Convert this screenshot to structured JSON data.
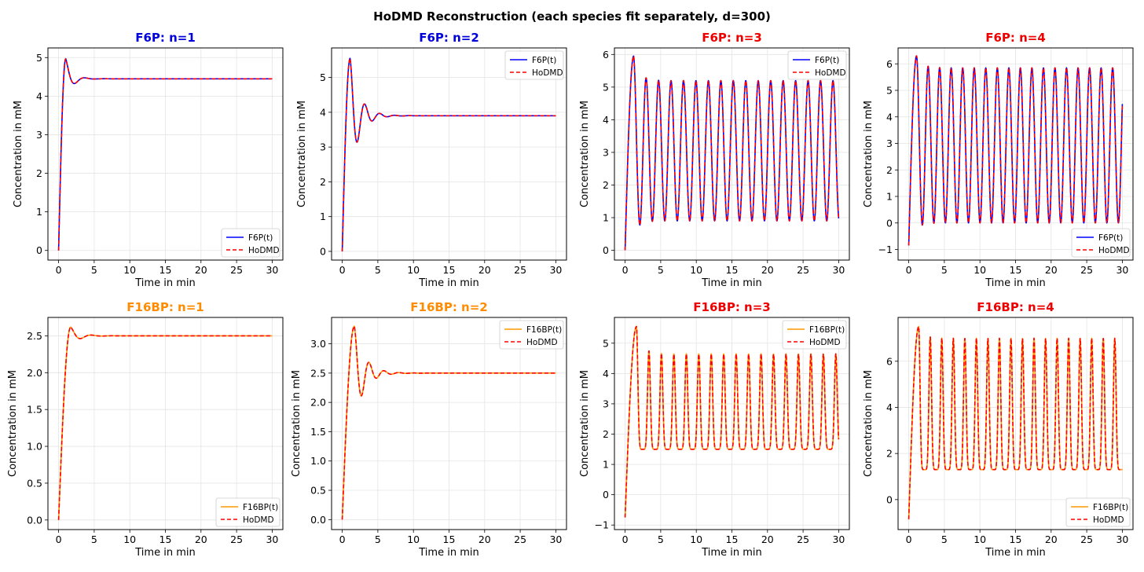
{
  "figure_title": "HoDMD Reconstruction (each species fit separately, d=300)",
  "colors": {
    "f6p_line": "#0000ff",
    "f16bp_line": "#ff9900",
    "hodmd_line": "#ff0000",
    "title_stable_f6p": "#0000dd",
    "title_stable_f16bp": "#ff8c00",
    "title_oscillating": "#ee0000",
    "grid": "#e4e4e4"
  },
  "chart_data": [
    {
      "id": "f6p-n1",
      "type": "line",
      "title": "F6P: n=1",
      "title_color": "#0000dd",
      "xlabel": "Time in min",
      "ylabel": "Concentration in mM",
      "xlim": [
        -1.5,
        31.5
      ],
      "ylim": [
        -0.25,
        5.25
      ],
      "xticks": [
        "0",
        "5",
        "10",
        "15",
        "20",
        "25",
        "30"
      ],
      "yticks": [
        "0",
        "1",
        "2",
        "3",
        "4",
        "5"
      ],
      "legend_loc": "lower-right",
      "series": [
        {
          "name": "F6P(t)",
          "color": "#0000ff",
          "style": "solid"
        },
        {
          "name": "HoDMD",
          "color": "#ff0000",
          "style": "dashed"
        }
      ],
      "dynamics": {
        "kind": "damped",
        "rise_end": 1.0,
        "peak": 4.97,
        "steady": 4.45,
        "period": 2.8,
        "decay": 0.9,
        "start": 0,
        "osc_amp_factor": 1.0
      }
    },
    {
      "id": "f6p-n2",
      "type": "line",
      "title": "F6P: n=2",
      "title_color": "#0000dd",
      "xlabel": "Time in min",
      "ylabel": "Concentration in mM",
      "xlim": [
        -1.5,
        31.5
      ],
      "ylim": [
        -0.25,
        5.85
      ],
      "xticks": [
        "0",
        "5",
        "10",
        "15",
        "20",
        "25",
        "30"
      ],
      "yticks": [
        "0",
        "1",
        "2",
        "3",
        "4",
        "5"
      ],
      "legend_loc": "upper-right",
      "series": [
        {
          "name": "F6P(t)",
          "color": "#0000ff",
          "style": "solid"
        },
        {
          "name": "HoDMD",
          "color": "#ff0000",
          "style": "dashed"
        }
      ],
      "dynamics": {
        "kind": "damped",
        "rise_end": 1.1,
        "peak": 5.55,
        "steady": 3.9,
        "period": 2.1,
        "decay": 1.3,
        "start": 0,
        "osc_amp_factor": 1.0
      }
    },
    {
      "id": "f6p-n3",
      "type": "line",
      "title": "F6P: n=3",
      "title_color": "#ee0000",
      "xlabel": "Time in min",
      "ylabel": "Concentration in mM",
      "xlim": [
        -1.5,
        31.5
      ],
      "ylim": [
        -0.3,
        6.2
      ],
      "xticks": [
        "0",
        "5",
        "10",
        "15",
        "20",
        "25",
        "30"
      ],
      "yticks": [
        "0",
        "1",
        "2",
        "3",
        "4",
        "5",
        "6"
      ],
      "legend_loc": "upper-right",
      "series": [
        {
          "name": "F6P(t)",
          "color": "#0000ff",
          "style": "solid"
        },
        {
          "name": "HoDMD",
          "color": "#ff0000",
          "style": "dashed"
        }
      ],
      "dynamics": {
        "kind": "osc",
        "rise_end": 1.2,
        "first_peak": 5.95,
        "peak": 5.2,
        "trough": 0.9,
        "period": 1.75,
        "start": 0
      }
    },
    {
      "id": "f6p-n4",
      "type": "line",
      "title": "F6P: n=4",
      "title_color": "#ee0000",
      "xlabel": "Time in min",
      "ylabel": "Concentration in mM",
      "xlim": [
        -1.5,
        31.5
      ],
      "ylim": [
        -1.4,
        6.6
      ],
      "xticks": [
        "0",
        "5",
        "10",
        "15",
        "20",
        "25",
        "30"
      ],
      "yticks": [
        "−1",
        "0",
        "1",
        "2",
        "3",
        "4",
        "5",
        "6"
      ],
      "legend_loc": "lower-right",
      "series": [
        {
          "name": "F6P(t)",
          "color": "#0000ff",
          "style": "solid"
        },
        {
          "name": "HoDMD",
          "color": "#ff0000",
          "style": "dashed"
        }
      ],
      "dynamics": {
        "kind": "osc",
        "rise_end": 1.1,
        "first_peak": 6.3,
        "peak": 5.85,
        "trough": 0.0,
        "period": 1.62,
        "start": -0.85
      }
    },
    {
      "id": "f16bp-n1",
      "type": "line",
      "title": "F16BP: n=1",
      "title_color": "#ff8c00",
      "xlabel": "Time in min",
      "ylabel": "Concentration in mM",
      "xlim": [
        -1.5,
        31.5
      ],
      "ylim": [
        -0.13,
        2.75
      ],
      "xticks": [
        "0",
        "5",
        "10",
        "15",
        "20",
        "25",
        "30"
      ],
      "yticks": [
        "0.0",
        "0.5",
        "1.0",
        "1.5",
        "2.0",
        "2.5"
      ],
      "legend_loc": "lower-right",
      "series": [
        {
          "name": "F16BP(t)",
          "color": "#ff9900",
          "style": "solid"
        },
        {
          "name": "HoDMD",
          "color": "#ff0000",
          "style": "dashed"
        }
      ],
      "dynamics": {
        "kind": "damped",
        "rise_end": 1.7,
        "peak": 2.62,
        "steady": 2.5,
        "period": 3.0,
        "decay": 1.2,
        "start": 0,
        "osc_amp_factor": 1.0
      }
    },
    {
      "id": "f16bp-n2",
      "type": "line",
      "title": "F16BP: n=2",
      "title_color": "#ff8c00",
      "xlabel": "Time in min",
      "ylabel": "Concentration in mM",
      "xlim": [
        -1.5,
        31.5
      ],
      "ylim": [
        -0.17,
        3.45
      ],
      "xticks": [
        "0",
        "5",
        "10",
        "15",
        "20",
        "25",
        "30"
      ],
      "yticks": [
        "0.0",
        "0.5",
        "1.0",
        "1.5",
        "2.0",
        "2.5",
        "3.0"
      ],
      "legend_loc": "upper-right",
      "series": [
        {
          "name": "F16BP(t)",
          "color": "#ff9900",
          "style": "solid"
        },
        {
          "name": "HoDMD",
          "color": "#ff0000",
          "style": "dashed"
        }
      ],
      "dynamics": {
        "kind": "damped",
        "rise_end": 1.7,
        "peak": 3.3,
        "steady": 2.5,
        "period": 2.1,
        "decay": 1.4,
        "start": 0,
        "osc_amp_factor": 1.0
      }
    },
    {
      "id": "f16bp-n3",
      "type": "line",
      "title": "F16BP: n=3",
      "title_color": "#ee0000",
      "xlabel": "Time in min",
      "ylabel": "Concentration in mM",
      "xlim": [
        -1.5,
        31.5
      ],
      "ylim": [
        -1.15,
        5.85
      ],
      "xticks": [
        "0",
        "5",
        "10",
        "15",
        "20",
        "25",
        "30"
      ],
      "yticks": [
        "−1",
        "0",
        "1",
        "2",
        "3",
        "4",
        "5"
      ],
      "legend_loc": "upper-right",
      "series": [
        {
          "name": "F16BP(t)",
          "color": "#ff9900",
          "style": "solid"
        },
        {
          "name": "HoDMD",
          "color": "#ff0000",
          "style": "dashed"
        }
      ],
      "dynamics": {
        "kind": "spike",
        "rise_end": 1.6,
        "first_peak": 5.55,
        "peak": 4.65,
        "trough": 1.5,
        "period": 1.75,
        "start": -0.75
      }
    },
    {
      "id": "f16bp-n4",
      "type": "line",
      "title": "F16BP: n=4",
      "title_color": "#ee0000",
      "xlabel": "Time in min",
      "ylabel": "Concentration in mM",
      "xlim": [
        -1.5,
        31.5
      ],
      "ylim": [
        -1.3,
        7.9
      ],
      "xticks": [
        "0",
        "5",
        "10",
        "15",
        "20",
        "25",
        "30"
      ],
      "yticks": [
        "0",
        "2",
        "4",
        "6"
      ],
      "legend_loc": "lower-right",
      "series": [
        {
          "name": "F16BP(t)",
          "color": "#ff9900",
          "style": "solid"
        },
        {
          "name": "HoDMD",
          "color": "#ff0000",
          "style": "dashed"
        }
      ],
      "dynamics": {
        "kind": "spike",
        "rise_end": 1.4,
        "first_peak": 7.5,
        "peak": 7.0,
        "trough": 1.3,
        "period": 1.62,
        "start": -0.85
      }
    }
  ]
}
